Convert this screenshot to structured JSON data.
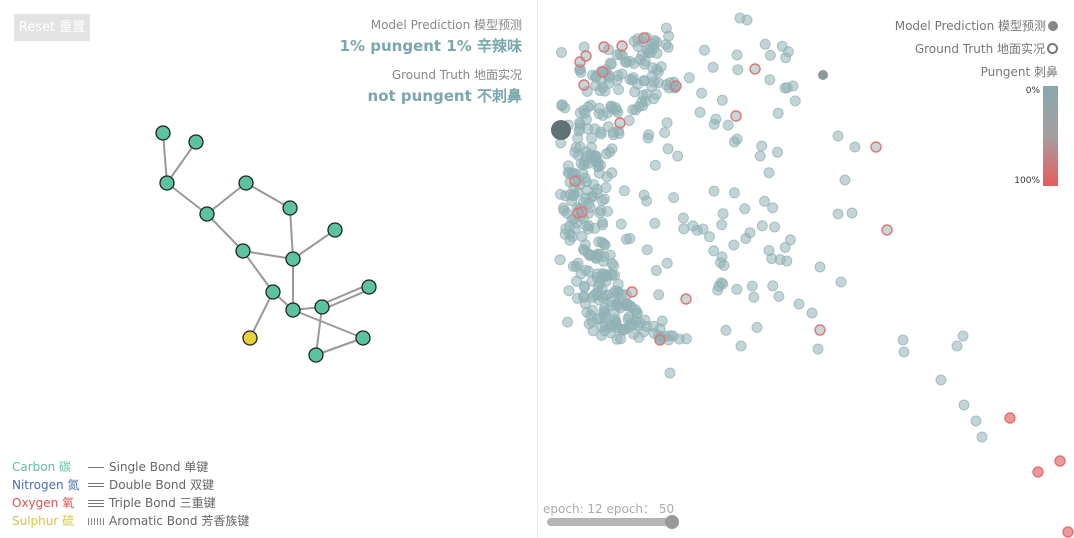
{
  "reset_label": "Reset 重置",
  "prediction": {
    "label": "Model Prediction 模型预测",
    "value": "1% pungent 1% 辛辣味"
  },
  "ground_truth": {
    "label": "Ground Truth 地面实况",
    "value": "not pungent 不刺鼻"
  },
  "legend_right": {
    "model_prediction": "Model Prediction  模型预测",
    "ground_truth": "Ground Truth  地面实况",
    "scale_title": "Pungent 刺鼻",
    "scale_min": "0%",
    "scale_max": "100%"
  },
  "legend_left": {
    "elements": [
      {
        "label": "Carbon 碳",
        "color": "#5bc49f"
      },
      {
        "label": "Nitrogen 氮",
        "color": "#4a6fb0"
      },
      {
        "label": "Oxygen 氧",
        "color": "#e0504e"
      },
      {
        "label": "Sulphur 硫",
        "color": "#e7d23e"
      }
    ],
    "bonds": [
      {
        "label": "Single Bond 单键",
        "style": "single"
      },
      {
        "label": "Double Bond 双键",
        "style": "double"
      },
      {
        "label": "Triple Bond 三重键",
        "style": "triple"
      },
      {
        "label": "Aromatic Bond 芳香族键",
        "style": "aromatic"
      }
    ]
  },
  "epoch": {
    "label": "epoch: 12 epoch：  50",
    "current": 12,
    "max": 50
  },
  "colors": {
    "carbon": "#5bc49f",
    "sulphur": "#e7d23e",
    "bond": "#999999",
    "point": "#8fb1b5",
    "point_red": "#e57373",
    "selected": "#5f7273"
  },
  "molecule": {
    "atoms": [
      {
        "el": "C"
      },
      {
        "el": "C"
      },
      {
        "el": "C"
      },
      {
        "el": "C"
      },
      {
        "el": "C"
      },
      {
        "el": "C"
      },
      {
        "el": "C"
      },
      {
        "el": "C"
      },
      {
        "el": "C"
      },
      {
        "el": "C"
      },
      {
        "el": "C"
      },
      {
        "el": "C"
      },
      {
        "el": "C"
      },
      {
        "el": "S"
      },
      {
        "el": "C"
      },
      {
        "el": "C"
      }
    ],
    "bonds": [
      [
        0,
        2,
        1
      ],
      [
        1,
        2,
        1
      ],
      [
        2,
        4,
        1
      ],
      [
        4,
        3,
        1
      ],
      [
        3,
        5,
        1
      ],
      [
        4,
        7,
        1
      ],
      [
        5,
        8,
        1
      ],
      [
        6,
        8,
        1
      ],
      [
        7,
        8,
        1
      ],
      [
        7,
        9,
        1
      ],
      [
        9,
        11,
        1
      ],
      [
        8,
        11,
        1
      ],
      [
        11,
        12,
        1
      ],
      [
        12,
        10,
        2
      ],
      [
        9,
        13,
        1
      ],
      [
        12,
        15,
        1
      ],
      [
        15,
        14,
        1
      ],
      [
        11,
        14,
        1
      ]
    ]
  }
}
